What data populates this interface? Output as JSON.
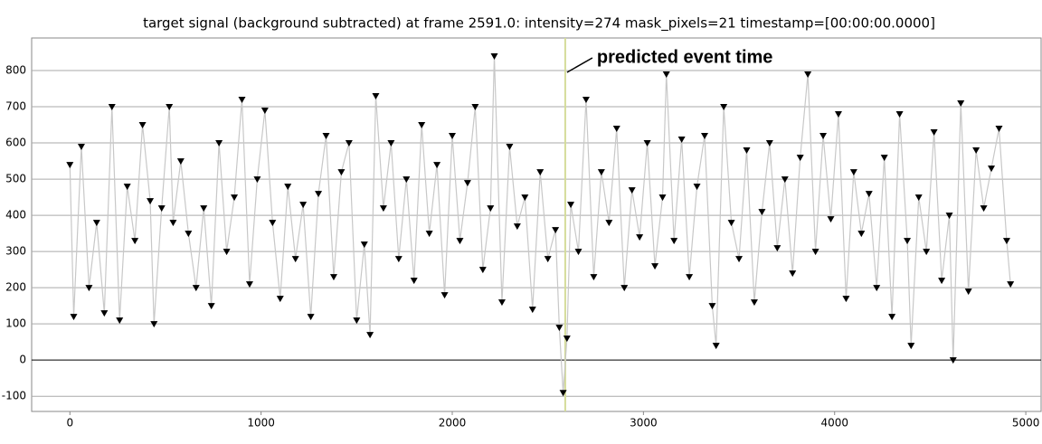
{
  "chart_data": {
    "type": "line",
    "title": "target signal (background subtracted) at frame 2591.0: intensity=274 mask_pixels=21 timestamp=[00:00:00.0000]",
    "annotation": {
      "text": "predicted event time",
      "x": 2591
    },
    "x": [
      0,
      20,
      60,
      100,
      140,
      180,
      220,
      260,
      300,
      340,
      380,
      420,
      440,
      480,
      520,
      540,
      580,
      620,
      660,
      700,
      740,
      780,
      820,
      860,
      900,
      940,
      980,
      1020,
      1060,
      1100,
      1140,
      1180,
      1220,
      1260,
      1300,
      1340,
      1380,
      1420,
      1460,
      1500,
      1540,
      1570,
      1600,
      1640,
      1680,
      1720,
      1760,
      1800,
      1840,
      1880,
      1920,
      1960,
      2000,
      2040,
      2080,
      2120,
      2160,
      2200,
      2220,
      2260,
      2300,
      2340,
      2380,
      2420,
      2460,
      2500,
      2540,
      2560,
      2580,
      2600,
      2620,
      2660,
      2700,
      2740,
      2780,
      2820,
      2860,
      2900,
      2940,
      2980,
      3020,
      3060,
      3100,
      3120,
      3160,
      3200,
      3240,
      3280,
      3320,
      3360,
      3380,
      3420,
      3460,
      3500,
      3540,
      3580,
      3620,
      3660,
      3700,
      3740,
      3780,
      3820,
      3860,
      3900,
      3940,
      3980,
      4020,
      4060,
      4100,
      4140,
      4180,
      4220,
      4260,
      4300,
      4340,
      4380,
      4400,
      4440,
      4480,
      4520,
      4560,
      4600,
      4620,
      4660,
      4700,
      4740,
      4780,
      4820,
      4860,
      4900,
      4920
    ],
    "series": [
      {
        "color": "#000000",
        "line_color": "#c8c8c8",
        "values": [
          540,
          120,
          590,
          200,
          380,
          130,
          700,
          110,
          480,
          330,
          650,
          440,
          100,
          420,
          700,
          380,
          550,
          350,
          200,
          420,
          150,
          600,
          300,
          450,
          720,
          210,
          500,
          690,
          380,
          170,
          480,
          280,
          430,
          120,
          460,
          620,
          230,
          520,
          600,
          110,
          320,
          70,
          730,
          420,
          600,
          280,
          500,
          220,
          650,
          350,
          540,
          180,
          620,
          330,
          490,
          700,
          250,
          420,
          840,
          160,
          590,
          370,
          450,
          140,
          520,
          280,
          360,
          90,
          -90,
          60,
          430,
          300,
          720,
          230,
          520,
          380,
          640,
          200,
          470,
          340,
          600,
          260,
          450,
          790,
          330,
          610,
          230,
          480,
          620,
          150,
          40,
          700,
          380,
          280,
          580,
          160,
          410,
          600,
          310,
          500,
          240,
          560,
          790,
          300,
          620,
          390,
          680,
          170,
          520,
          350,
          460,
          200,
          560,
          120,
          680,
          330,
          40,
          450,
          300,
          630,
          220,
          400,
          0,
          710,
          190,
          580,
          420,
          530,
          640,
          330,
          210
        ]
      }
    ],
    "xlim": [
      -200,
      5080
    ],
    "ylim": [
      -142,
      890
    ],
    "xticks": [
      0,
      1000,
      2000,
      3000,
      4000,
      5000
    ],
    "yticks": [
      -100,
      0,
      100,
      200,
      300,
      400,
      500,
      600,
      700,
      800
    ],
    "grid": true
  }
}
